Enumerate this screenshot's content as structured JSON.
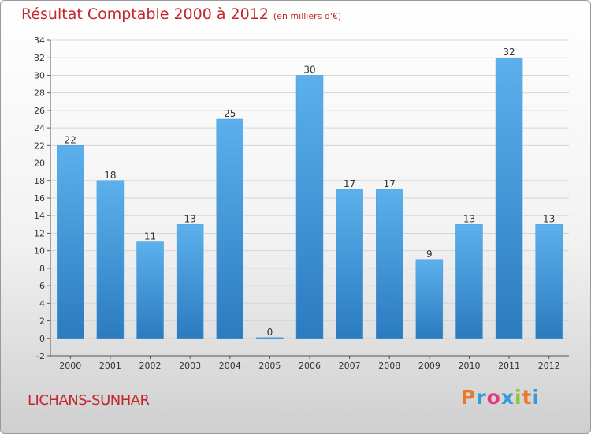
{
  "header": {
    "title": "Résultat Comptable 2000 à 2012",
    "subtitle": "(en milliers d'€)"
  },
  "footer": {
    "commune": "LICHANS-SUNHAR",
    "logo_text": "Proxiti"
  },
  "colors": {
    "title": "#c1272d",
    "bar_top": "#5cb0ec",
    "bar_bottom": "#2b7bbf",
    "grid": "#d6d6d6"
  },
  "chart_data": {
    "type": "bar",
    "categories": [
      "2000",
      "2001",
      "2002",
      "2003",
      "2004",
      "2005",
      "2006",
      "2007",
      "2008",
      "2009",
      "2010",
      "2011",
      "2012"
    ],
    "values": [
      22,
      18,
      11,
      13,
      25,
      0,
      30,
      17,
      17,
      9,
      13,
      32,
      13
    ],
    "data_labels": [
      "22",
      "18",
      "11",
      "13",
      "25",
      "0",
      "30",
      "17",
      "17",
      "9",
      "13",
      "32",
      "13"
    ],
    "yticks": [
      -2,
      0,
      2,
      4,
      6,
      8,
      10,
      12,
      14,
      16,
      18,
      20,
      22,
      24,
      26,
      28,
      30,
      32,
      34
    ],
    "ylim": [
      -2,
      34
    ],
    "grid": true
  }
}
